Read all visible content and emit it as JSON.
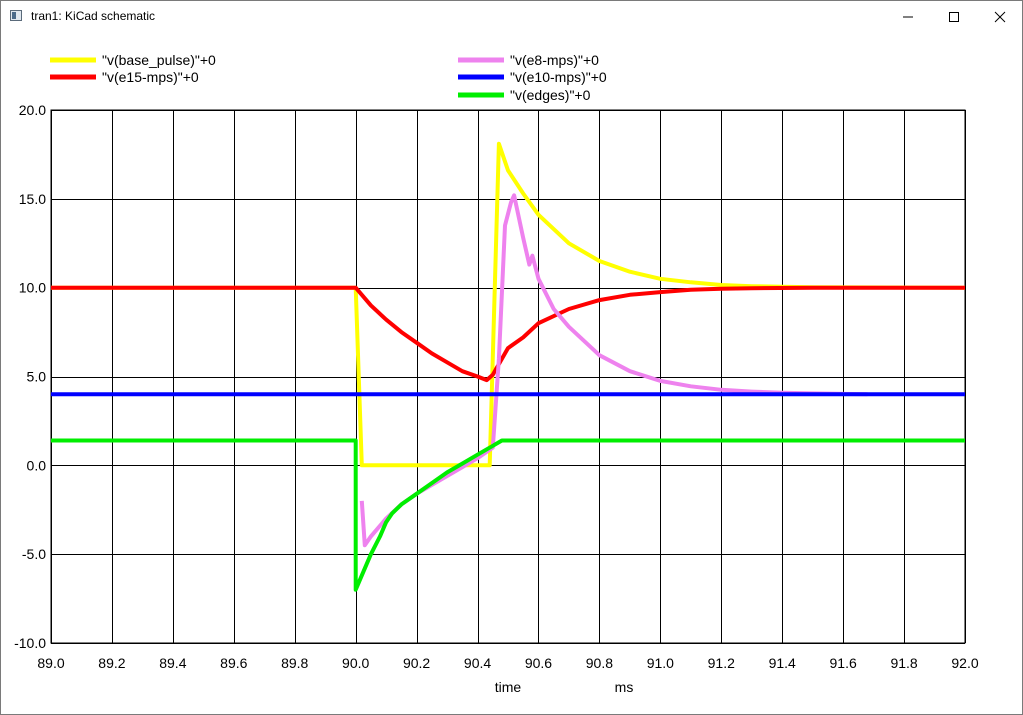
{
  "window": {
    "title": "tran1: KiCad schematic",
    "icon": "window-app-icon",
    "controls": [
      "minimize-icon",
      "maximize-icon",
      "close-icon"
    ]
  },
  "chart_data": {
    "type": "line",
    "xlabel": "time",
    "xunit": "ms",
    "ylabel": "",
    "xlim": [
      89.0,
      92.0
    ],
    "ylim": [
      -10.0,
      20.0
    ],
    "xticks": [
      "89.0",
      "89.2",
      "89.4",
      "89.6",
      "89.8",
      "90.0",
      "90.2",
      "90.4",
      "90.6",
      "90.8",
      "91.0",
      "91.2",
      "91.4",
      "91.6",
      "91.8",
      "92.0"
    ],
    "yticks": [
      "20.0",
      "15.0",
      "10.0",
      "5.0",
      "0.0",
      "-5.0",
      "-10.0"
    ],
    "grid": true,
    "legend_position": "top",
    "series": [
      {
        "name": "\"v(base_pulse)\"+0",
        "color": "#ffff00",
        "points": [
          [
            89.0,
            10.0
          ],
          [
            90.0,
            10.0
          ],
          [
            90.02,
            0.0
          ],
          [
            90.44,
            0.0
          ],
          [
            90.47,
            18.1
          ],
          [
            90.5,
            16.6
          ],
          [
            90.55,
            15.3
          ],
          [
            90.6,
            14.1
          ],
          [
            90.7,
            12.5
          ],
          [
            90.8,
            11.5
          ],
          [
            90.9,
            10.9
          ],
          [
            91.0,
            10.5
          ],
          [
            91.1,
            10.3
          ],
          [
            91.2,
            10.15
          ],
          [
            91.3,
            10.08
          ],
          [
            91.4,
            10.05
          ],
          [
            91.5,
            10.02
          ],
          [
            92.0,
            10.0
          ]
        ]
      },
      {
        "name": "\"v(e15-mps)\"+0",
        "color": "#ff0000",
        "points": [
          [
            89.0,
            10.0
          ],
          [
            90.0,
            10.0
          ],
          [
            90.05,
            9.0
          ],
          [
            90.1,
            8.2
          ],
          [
            90.15,
            7.5
          ],
          [
            90.2,
            6.9
          ],
          [
            90.25,
            6.3
          ],
          [
            90.3,
            5.8
          ],
          [
            90.35,
            5.3
          ],
          [
            90.4,
            5.0
          ],
          [
            90.43,
            4.8
          ],
          [
            90.45,
            5.1
          ],
          [
            90.5,
            6.6
          ],
          [
            90.55,
            7.2
          ],
          [
            90.6,
            8.0
          ],
          [
            90.7,
            8.8
          ],
          [
            90.8,
            9.3
          ],
          [
            90.9,
            9.6
          ],
          [
            91.0,
            9.75
          ],
          [
            91.1,
            9.88
          ],
          [
            91.2,
            9.94
          ],
          [
            91.3,
            9.97
          ],
          [
            91.5,
            10.0
          ],
          [
            92.0,
            10.0
          ]
        ]
      },
      {
        "name": "\"v(e8-mps)\"+0",
        "color": "#ee82ee",
        "points": [
          [
            90.02,
            -2.0
          ],
          [
            90.03,
            -4.5
          ],
          [
            90.05,
            -4.0
          ],
          [
            90.1,
            -3.0
          ],
          [
            90.15,
            -2.2
          ],
          [
            90.2,
            -1.6
          ],
          [
            90.25,
            -1.1
          ],
          [
            90.3,
            -0.6
          ],
          [
            90.35,
            -0.1
          ],
          [
            90.4,
            0.4
          ],
          [
            90.45,
            1.0
          ],
          [
            90.47,
            6.0
          ],
          [
            90.49,
            13.5
          ],
          [
            90.51,
            14.8
          ],
          [
            90.52,
            15.2
          ],
          [
            90.55,
            12.8
          ],
          [
            90.57,
            11.3
          ],
          [
            90.58,
            11.8
          ],
          [
            90.6,
            10.5
          ],
          [
            90.65,
            8.8
          ],
          [
            90.7,
            7.8
          ],
          [
            90.8,
            6.2
          ],
          [
            90.9,
            5.3
          ],
          [
            91.0,
            4.75
          ],
          [
            91.1,
            4.45
          ],
          [
            91.2,
            4.25
          ],
          [
            91.3,
            4.15
          ],
          [
            91.4,
            4.08
          ],
          [
            91.5,
            4.05
          ],
          [
            91.68,
            4.0
          ]
        ]
      },
      {
        "name": "\"v(e10-mps)\"+0",
        "color": "#0000ff",
        "points": [
          [
            89.0,
            4.0
          ],
          [
            92.0,
            4.0
          ]
        ]
      },
      {
        "name": "\"v(edges)\"+0",
        "color": "#00ee00",
        "points": [
          [
            89.0,
            1.4
          ],
          [
            90.0,
            1.4
          ],
          [
            90.0,
            -7.0
          ],
          [
            90.05,
            -5.0
          ],
          [
            90.08,
            -4.0
          ],
          [
            90.1,
            -3.2
          ],
          [
            90.12,
            -2.7
          ],
          [
            90.15,
            -2.2
          ],
          [
            90.2,
            -1.6
          ],
          [
            90.25,
            -1.0
          ],
          [
            90.3,
            -0.4
          ],
          [
            90.35,
            0.1
          ],
          [
            90.4,
            0.6
          ],
          [
            90.45,
            1.1
          ],
          [
            90.48,
            1.4
          ],
          [
            92.0,
            1.4
          ]
        ]
      }
    ]
  }
}
